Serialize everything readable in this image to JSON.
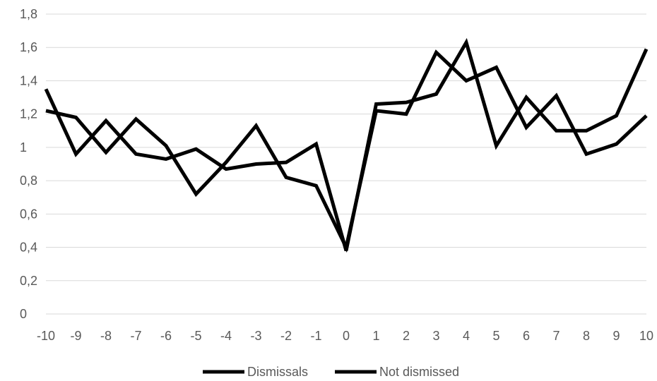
{
  "chart_data": {
    "type": "line",
    "title": "",
    "xlabel": "",
    "ylabel": "",
    "x": [
      -10,
      -9,
      -8,
      -7,
      -6,
      -5,
      -4,
      -3,
      -2,
      -1,
      0,
      1,
      2,
      3,
      4,
      5,
      6,
      7,
      8,
      9,
      10
    ],
    "x_tick_labels": [
      "-10",
      "-9",
      "-8",
      "-7",
      "-6",
      "-5",
      "-4",
      "-3",
      "-2",
      "-1",
      "0",
      "1",
      "2",
      "3",
      "4",
      "5",
      "6",
      "7",
      "8",
      "9",
      "10"
    ],
    "ylim": [
      0,
      1.8
    ],
    "y_ticks": [
      0,
      0.2,
      0.4,
      0.6,
      0.8,
      1,
      1.2,
      1.4,
      1.6,
      1.8
    ],
    "y_tick_labels": [
      "0",
      "0,2",
      "0,4",
      "0,6",
      "0,8",
      "1",
      "1,2",
      "1,4",
      "1,6",
      "1,8"
    ],
    "grid": true,
    "legend_position": "bottom",
    "series": [
      {
        "name": "Dismissals",
        "color": "#000000",
        "values": [
          1.35,
          0.96,
          1.16,
          0.96,
          0.93,
          0.99,
          0.87,
          0.9,
          0.91,
          1.02,
          0.38,
          1.26,
          1.27,
          1.32,
          1.63,
          1.01,
          1.3,
          1.1,
          1.1,
          1.19,
          1.59
        ]
      },
      {
        "name": "Not dismissed",
        "color": "#000000",
        "values": [
          1.22,
          1.18,
          0.97,
          1.17,
          1.01,
          0.72,
          0.91,
          1.13,
          0.82,
          0.77,
          0.4,
          1.22,
          1.2,
          1.57,
          1.4,
          1.48,
          1.12,
          1.31,
          0.96,
          1.02,
          1.19
        ]
      }
    ]
  }
}
